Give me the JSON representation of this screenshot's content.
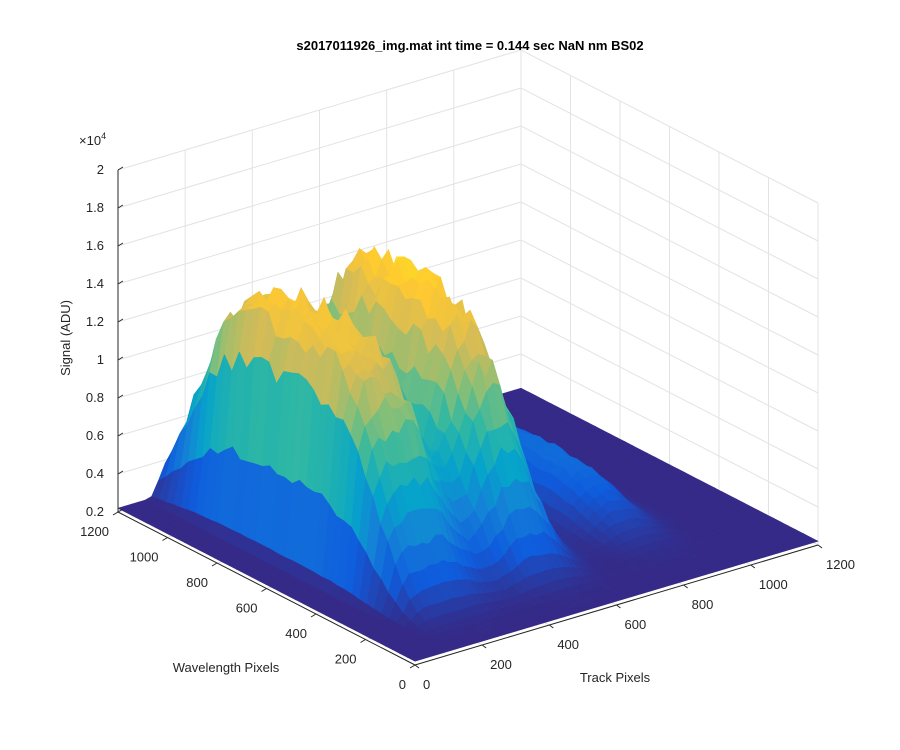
{
  "chart_data": {
    "type": "surface",
    "title": "s2017011926_img.mat int time = 0.144 sec  NaN nm BS02",
    "xlabel": "Track Pixels",
    "ylabel": "Wavelength Pixels",
    "zlabel": "Signal (ADU)",
    "z_exponent_label": "×10",
    "z_exponent_power": "4",
    "xlim": [
      0,
      1200
    ],
    "ylim": [
      0,
      1200
    ],
    "zlim": [
      0.2,
      2.0
    ],
    "z_scale": 10000,
    "x_ticks": [
      "0",
      "200",
      "400",
      "600",
      "800",
      "1000",
      "1200"
    ],
    "y_ticks": [
      "0",
      "200",
      "400",
      "600",
      "800",
      "1000",
      "1200"
    ],
    "z_ticks": [
      "0.2",
      "0.4",
      "0.6",
      "0.8",
      "1",
      "1.2",
      "1.4",
      "1.6",
      "1.8",
      "2"
    ],
    "grid": true,
    "colormap": "parula",
    "colors": [
      "#352a87",
      "#0f5cdd",
      "#1481d6",
      "#06a4ca",
      "#2eb7a4",
      "#87bf77",
      "#d1bb59",
      "#fec832",
      "#f9fb0e"
    ],
    "peaks": [
      {
        "track_center": 250,
        "track_halfwidth": 130,
        "peak_signal": 15200,
        "edge": "steep-left"
      },
      {
        "track_center": 520,
        "track_halfwidth": 110,
        "peak_signal": 15800,
        "edge": "rounded"
      },
      {
        "track_center": 850,
        "track_halfwidth": 90,
        "peak_signal": 5000,
        "edge": "rounded"
      }
    ],
    "wavelength_profile": {
      "center": 720,
      "width": 420
    },
    "baseline_signal": 2200
  }
}
